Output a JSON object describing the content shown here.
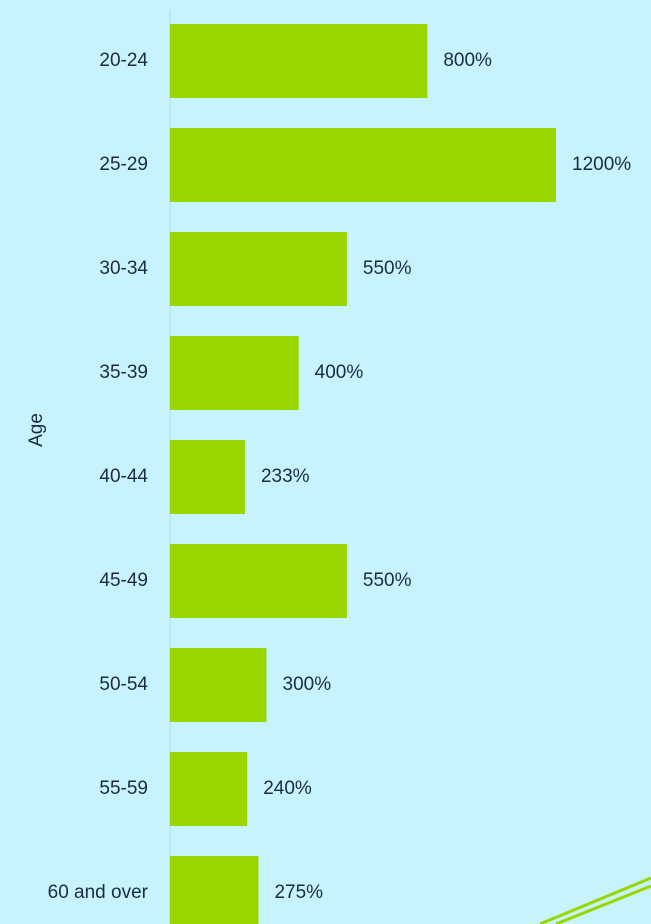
{
  "chart_data": {
    "type": "bar",
    "orientation": "horizontal",
    "y_label": "Age",
    "categories": [
      "20-24",
      "25-29",
      "30-34",
      "35-39",
      "40-44",
      "45-49",
      "50-54",
      "55-59",
      "60 and over"
    ],
    "values": [
      800,
      1200,
      550,
      400,
      233,
      550,
      300,
      240,
      275
    ],
    "value_labels": [
      "800%",
      "1200%",
      "550%",
      "400%",
      "233%",
      "550%",
      "300%",
      "240%",
      "275%"
    ],
    "color": "#99d600"
  }
}
